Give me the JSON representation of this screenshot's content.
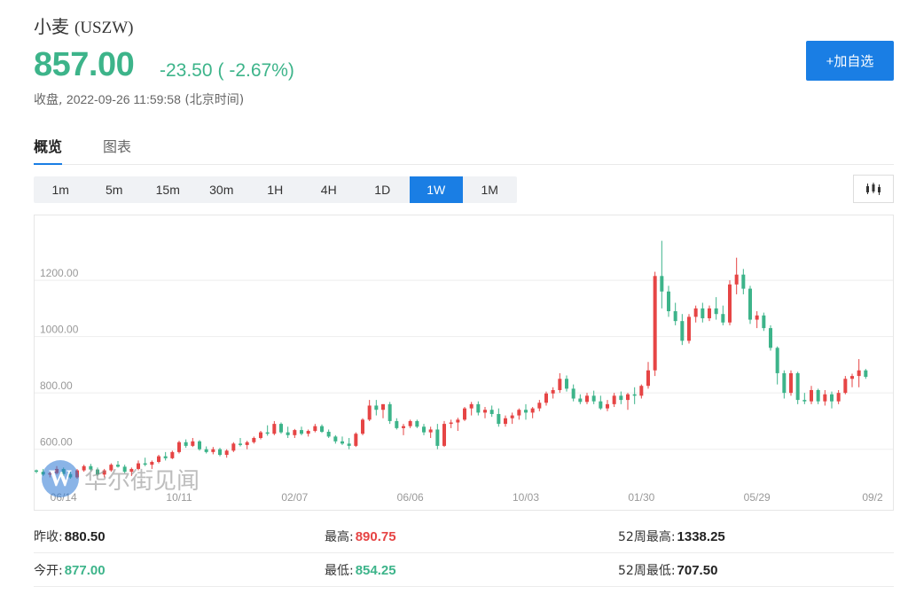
{
  "header": {
    "name": "小麦",
    "symbol": "(USZW)",
    "price": "857.00",
    "change": "-23.50",
    "change_pct": "( -2.67%)",
    "status": "收盘,",
    "timestamp": "2022-09-26 11:59:58",
    "timezone": "(北京时间)",
    "add_button": "+加自选",
    "up_color": "#e64545",
    "down_color": "#3db48a",
    "accent_color": "#1a7ee4"
  },
  "tabs": [
    {
      "label": "概览",
      "active": true
    },
    {
      "label": "图表",
      "active": false
    }
  ],
  "periods": [
    {
      "label": "1m",
      "active": false
    },
    {
      "label": "5m",
      "active": false
    },
    {
      "label": "15m",
      "active": false
    },
    {
      "label": "30m",
      "active": false
    },
    {
      "label": "1H",
      "active": false
    },
    {
      "label": "4H",
      "active": false
    },
    {
      "label": "1D",
      "active": false
    },
    {
      "label": "1W",
      "active": true
    },
    {
      "label": "1M",
      "active": false
    }
  ],
  "chart_type_icon": "candlestick-icon",
  "watermark": {
    "logo": "W",
    "text": "华尔街见闻"
  },
  "chart_data": {
    "type": "candlestick",
    "y_ticks": [
      "1200.00",
      "1000.00",
      "800.00",
      "600.00"
    ],
    "y_tick_values": [
      1200,
      1000,
      800,
      600
    ],
    "ylim": [
      470,
      1430
    ],
    "x_ticks": [
      {
        "label": "06/14",
        "index": 4
      },
      {
        "label": "10/11",
        "index": 21
      },
      {
        "label": "02/07",
        "index": 38
      },
      {
        "label": "06/06",
        "index": 55
      },
      {
        "label": "10/03",
        "index": 72
      },
      {
        "label": "01/30",
        "index": 89
      },
      {
        "label": "05/29",
        "index": 106
      },
      {
        "label": "09/2",
        "index": 123
      }
    ],
    "x_range": [
      0,
      126
    ],
    "candles": [
      [
        525,
        528,
        515,
        520
      ],
      [
        520,
        530,
        505,
        510
      ],
      [
        510,
        520,
        500,
        515
      ],
      [
        515,
        540,
        510,
        530
      ],
      [
        530,
        535,
        505,
        512
      ],
      [
        512,
        520,
        495,
        500
      ],
      [
        500,
        530,
        495,
        525
      ],
      [
        525,
        545,
        520,
        540
      ],
      [
        540,
        548,
        522,
        528
      ],
      [
        528,
        535,
        505,
        510
      ],
      [
        510,
        530,
        500,
        525
      ],
      [
        525,
        550,
        520,
        545
      ],
      [
        545,
        558,
        535,
        538
      ],
      [
        538,
        545,
        515,
        520
      ],
      [
        520,
        535,
        505,
        530
      ],
      [
        530,
        560,
        525,
        550
      ],
      [
        550,
        570,
        540,
        545
      ],
      [
        545,
        560,
        530,
        555
      ],
      [
        555,
        580,
        550,
        575
      ],
      [
        575,
        590,
        560,
        568
      ],
      [
        568,
        595,
        565,
        590
      ],
      [
        590,
        630,
        585,
        625
      ],
      [
        625,
        635,
        605,
        612
      ],
      [
        612,
        640,
        608,
        628
      ],
      [
        628,
        632,
        595,
        600
      ],
      [
        600,
        610,
        585,
        590
      ],
      [
        590,
        608,
        582,
        600
      ],
      [
        600,
        605,
        575,
        580
      ],
      [
        580,
        600,
        570,
        595
      ],
      [
        595,
        625,
        590,
        620
      ],
      [
        620,
        640,
        610,
        615
      ],
      [
        615,
        630,
        600,
        625
      ],
      [
        625,
        645,
        620,
        640
      ],
      [
        640,
        665,
        635,
        660
      ],
      [
        660,
        685,
        648,
        655
      ],
      [
        655,
        700,
        650,
        690
      ],
      [
        690,
        695,
        655,
        660
      ],
      [
        660,
        680,
        640,
        650
      ],
      [
        650,
        672,
        640,
        668
      ],
      [
        668,
        680,
        650,
        655
      ],
      [
        655,
        670,
        645,
        665
      ],
      [
        665,
        690,
        660,
        682
      ],
      [
        682,
        688,
        658,
        662
      ],
      [
        662,
        670,
        640,
        645
      ],
      [
        645,
        650,
        620,
        628
      ],
      [
        628,
        645,
        615,
        620
      ],
      [
        620,
        640,
        600,
        612
      ],
      [
        612,
        660,
        608,
        655
      ],
      [
        655,
        710,
        650,
        705
      ],
      [
        705,
        775,
        700,
        755
      ],
      [
        755,
        775,
        720,
        740
      ],
      [
        740,
        760,
        710,
        760
      ],
      [
        760,
        768,
        690,
        700
      ],
      [
        700,
        710,
        670,
        675
      ],
      [
        675,
        690,
        650,
        682
      ],
      [
        682,
        705,
        675,
        700
      ],
      [
        700,
        705,
        675,
        680
      ],
      [
        680,
        690,
        650,
        660
      ],
      [
        660,
        680,
        640,
        670
      ],
      [
        670,
        690,
        600,
        612
      ],
      [
        612,
        700,
        608,
        690
      ],
      [
        690,
        705,
        675,
        695
      ],
      [
        695,
        712,
        665,
        705
      ],
      [
        705,
        750,
        700,
        745
      ],
      [
        745,
        768,
        720,
        760
      ],
      [
        760,
        770,
        720,
        730
      ],
      [
        730,
        750,
        710,
        740
      ],
      [
        740,
        755,
        715,
        725
      ],
      [
        725,
        745,
        680,
        690
      ],
      [
        690,
        720,
        680,
        710
      ],
      [
        710,
        730,
        690,
        720
      ],
      [
        720,
        745,
        705,
        740
      ],
      [
        740,
        760,
        705,
        730
      ],
      [
        730,
        750,
        710,
        745
      ],
      [
        745,
        775,
        735,
        765
      ],
      [
        765,
        805,
        755,
        798
      ],
      [
        798,
        820,
        780,
        810
      ],
      [
        810,
        870,
        800,
        850
      ],
      [
        850,
        862,
        805,
        815
      ],
      [
        815,
        830,
        770,
        780
      ],
      [
        780,
        795,
        760,
        768
      ],
      [
        768,
        800,
        760,
        790
      ],
      [
        790,
        808,
        760,
        770
      ],
      [
        770,
        790,
        740,
        745
      ],
      [
        745,
        775,
        735,
        760
      ],
      [
        760,
        800,
        750,
        790
      ],
      [
        790,
        805,
        760,
        775
      ],
      [
        775,
        800,
        740,
        795
      ],
      [
        795,
        820,
        760,
        790
      ],
      [
        790,
        830,
        780,
        825
      ],
      [
        825,
        910,
        815,
        880
      ],
      [
        880,
        1230,
        860,
        1215
      ],
      [
        1215,
        1340,
        1100,
        1160
      ],
      [
        1160,
        1180,
        1070,
        1090
      ],
      [
        1090,
        1120,
        1040,
        1055
      ],
      [
        1055,
        1080,
        970,
        985
      ],
      [
        985,
        1080,
        975,
        1070
      ],
      [
        1070,
        1110,
        1050,
        1100
      ],
      [
        1100,
        1120,
        1050,
        1065
      ],
      [
        1065,
        1110,
        1055,
        1100
      ],
      [
        1100,
        1140,
        1060,
        1080
      ],
      [
        1080,
        1110,
        1040,
        1050
      ],
      [
        1050,
        1200,
        1040,
        1185
      ],
      [
        1185,
        1280,
        1150,
        1220
      ],
      [
        1220,
        1240,
        1150,
        1170
      ],
      [
        1170,
        1180,
        1045,
        1060
      ],
      [
        1060,
        1090,
        1030,
        1075
      ],
      [
        1075,
        1085,
        1020,
        1030
      ],
      [
        1030,
        1040,
        950,
        960
      ],
      [
        960,
        965,
        830,
        870
      ],
      [
        870,
        880,
        780,
        800
      ],
      [
        800,
        880,
        790,
        870
      ],
      [
        870,
        875,
        760,
        775
      ],
      [
        775,
        800,
        760,
        770
      ],
      [
        770,
        825,
        760,
        810
      ],
      [
        810,
        815,
        760,
        770
      ],
      [
        770,
        810,
        755,
        795
      ],
      [
        795,
        805,
        745,
        770
      ],
      [
        770,
        810,
        760,
        800
      ],
      [
        800,
        860,
        795,
        850
      ],
      [
        850,
        868,
        820,
        860
      ],
      [
        860,
        920,
        820,
        880
      ],
      [
        880,
        885,
        850,
        857
      ]
    ]
  },
  "stats": [
    [
      {
        "label": "昨收:",
        "value": "880.50",
        "tone": "dark"
      },
      {
        "label": "最高:",
        "value": "890.75",
        "tone": "red"
      },
      {
        "label": "52周最高:",
        "value": "1338.25",
        "tone": "dark"
      }
    ],
    [
      {
        "label": "今开:",
        "value": "877.00",
        "tone": "green"
      },
      {
        "label": "最低:",
        "value": "854.25",
        "tone": "green"
      },
      {
        "label": "52周最低:",
        "value": "707.50",
        "tone": "dark"
      }
    ]
  ]
}
